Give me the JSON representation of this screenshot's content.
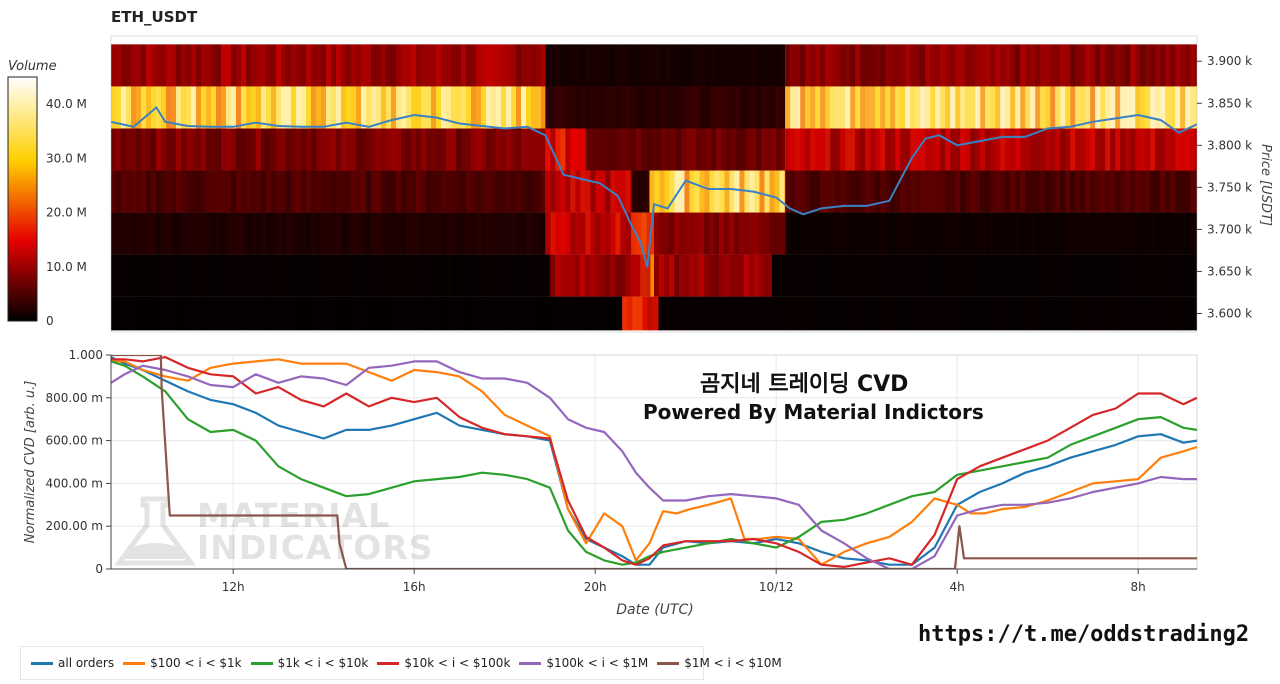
{
  "chart_data": [
    {
      "type": "heatmap",
      "title": "ETH_USDT",
      "colorbar": {
        "label": "Volume",
        "ticks": [
          "40.0 M",
          "30.0 M",
          "20.0 M",
          "10.0 M",
          "0"
        ],
        "tick_values": [
          40,
          30,
          20,
          10,
          0
        ],
        "range_millions": [
          0,
          45
        ],
        "colorscale": "hot"
      },
      "y_axis": {
        "label": "Price [USDT]",
        "range": [
          3.578,
          3.93
        ],
        "tick_values": [
          3.6,
          3.65,
          3.7,
          3.75,
          3.8,
          3.85,
          3.9
        ],
        "tick_labels": [
          "3.600 k",
          "3.650 k",
          "3.700 k",
          "3.750 k",
          "3.800 k",
          "3.850 k",
          "3.900 k"
        ]
      },
      "x_range_hours": [
        9.3,
        33.3
      ],
      "price_bins": [
        3.58,
        3.62,
        3.67,
        3.72,
        3.77,
        3.82,
        3.87,
        3.92
      ],
      "bands": [
        {
          "range": [
            3.87,
            3.92
          ],
          "segments": [
            {
              "from": 9.3,
              "to": 18.9,
              "level": 10
            },
            {
              "from": 18.9,
              "to": 24.2,
              "level": 1.5
            },
            {
              "from": 24.2,
              "to": 33.3,
              "level": 9
            }
          ]
        },
        {
          "range": [
            3.82,
            3.87
          ],
          "segments": [
            {
              "from": 9.3,
              "to": 18.9,
              "level": 34
            },
            {
              "from": 18.9,
              "to": 24.2,
              "level": 3
            },
            {
              "from": 24.2,
              "to": 33.3,
              "level": 36
            }
          ]
        },
        {
          "range": [
            3.77,
            3.82
          ],
          "segments": [
            {
              "from": 9.3,
              "to": 18.9,
              "level": 8
            },
            {
              "from": 18.9,
              "to": 19.8,
              "level": 15
            },
            {
              "from": 19.8,
              "to": 24.2,
              "level": 7
            },
            {
              "from": 24.2,
              "to": 33.3,
              "level": 12
            }
          ]
        },
        {
          "range": [
            3.72,
            3.77
          ],
          "segments": [
            {
              "from": 9.3,
              "to": 18.9,
              "level": 5
            },
            {
              "from": 18.9,
              "to": 20.8,
              "level": 12
            },
            {
              "from": 20.8,
              "to": 21.2,
              "level": 3
            },
            {
              "from": 21.2,
              "to": 24.2,
              "level": 34
            },
            {
              "from": 24.2,
              "to": 33.3,
              "level": 5
            }
          ]
        },
        {
          "range": [
            3.67,
            3.72
          ],
          "segments": [
            {
              "from": 9.3,
              "to": 18.9,
              "level": 2
            },
            {
              "from": 18.9,
              "to": 20.8,
              "level": 13
            },
            {
              "from": 20.8,
              "to": 21.3,
              "level": 22
            },
            {
              "from": 21.3,
              "to": 24.2,
              "level": 8
            },
            {
              "from": 24.2,
              "to": 33.3,
              "level": 1
            }
          ]
        },
        {
          "range": [
            3.62,
            3.67
          ],
          "segments": [
            {
              "from": 9.3,
              "to": 19.0,
              "level": 0.5
            },
            {
              "from": 19.0,
              "to": 21.0,
              "level": 10
            },
            {
              "from": 21.0,
              "to": 21.3,
              "level": 20
            },
            {
              "from": 21.3,
              "to": 23.9,
              "level": 10
            },
            {
              "from": 23.9,
              "to": 33.3,
              "level": 0.5
            }
          ]
        },
        {
          "range": [
            3.58,
            3.62
          ],
          "segments": [
            {
              "from": 9.3,
              "to": 20.6,
              "level": 0.4
            },
            {
              "from": 20.6,
              "to": 21.4,
              "level": 17
            },
            {
              "from": 21.4,
              "to": 33.3,
              "level": 0.5
            }
          ]
        }
      ],
      "price_series": {
        "name": "price",
        "color": "#3b82c4",
        "x": [
          9.3,
          9.8,
          10.3,
          10.5,
          11,
          11.5,
          12,
          12.5,
          13,
          13.5,
          14,
          14.5,
          15,
          15.5,
          16,
          16.5,
          17,
          17.5,
          18,
          18.5,
          18.9,
          19.3,
          19.7,
          20.1,
          20.5,
          20.8,
          21.0,
          21.15,
          21.3,
          21.6,
          22,
          22.5,
          23,
          23.5,
          24,
          24.3,
          24.6,
          25,
          25.5,
          26,
          26.5,
          27,
          27.3,
          27.6,
          28,
          28.5,
          29,
          29.5,
          30,
          30.5,
          31,
          31.5,
          32,
          32.5,
          32.9,
          33.3
        ],
        "y": [
          3.828,
          3.822,
          3.845,
          3.828,
          3.823,
          3.822,
          3.822,
          3.827,
          3.823,
          3.822,
          3.822,
          3.827,
          3.822,
          3.83,
          3.836,
          3.833,
          3.826,
          3.823,
          3.82,
          3.822,
          3.812,
          3.765,
          3.76,
          3.755,
          3.74,
          3.705,
          3.685,
          3.655,
          3.73,
          3.725,
          3.758,
          3.748,
          3.748,
          3.745,
          3.738,
          3.725,
          3.718,
          3.725,
          3.728,
          3.728,
          3.734,
          3.785,
          3.808,
          3.812,
          3.8,
          3.805,
          3.81,
          3.81,
          3.82,
          3.822,
          3.828,
          3.832,
          3.836,
          3.83,
          3.815,
          3.825
        ]
      }
    },
    {
      "type": "line",
      "x_range_hours": [
        9.3,
        33.3
      ],
      "x_ticks": [
        {
          "value": 12,
          "label": "12h"
        },
        {
          "value": 16,
          "label": "16h"
        },
        {
          "value": 20,
          "label": "20h"
        },
        {
          "value": 24,
          "label": "10/12"
        },
        {
          "value": 28,
          "label": "4h"
        },
        {
          "value": 32,
          "label": "8h"
        }
      ],
      "xlabel": "Date (UTC)",
      "ylabel": "Normalized CVD [arb. u.]",
      "ylim": [
        0,
        1.0
      ],
      "y_ticks": [
        {
          "value": 0,
          "label": "0"
        },
        {
          "value": 0.2,
          "label": "200.00 m"
        },
        {
          "value": 0.4,
          "label": "400.00 m"
        },
        {
          "value": 0.6,
          "label": "600.00 m"
        },
        {
          "value": 0.8,
          "label": "800.00 m"
        },
        {
          "value": 1.0,
          "label": "1.000"
        }
      ],
      "grid": true,
      "legend": "bottom",
      "series": [
        {
          "name": "all orders",
          "color": "#1f77b4",
          "x": [
            9.3,
            9.6,
            10,
            10.5,
            11,
            11.5,
            12,
            12.5,
            13,
            13.5,
            14,
            14.5,
            15,
            15.5,
            16,
            16.5,
            17,
            17.5,
            18,
            18.5,
            19,
            19.4,
            19.8,
            20.2,
            20.6,
            20.9,
            21.2,
            21.5,
            22,
            22.5,
            23,
            23.5,
            24,
            24.5,
            25,
            25.5,
            26,
            26.5,
            27,
            27.5,
            28,
            28.5,
            29,
            29.5,
            30,
            30.5,
            31,
            31.5,
            32,
            32.5,
            33,
            33.3
          ],
          "y": [
            0.99,
            0.96,
            0.93,
            0.88,
            0.83,
            0.79,
            0.77,
            0.73,
            0.67,
            0.64,
            0.61,
            0.65,
            0.65,
            0.67,
            0.7,
            0.73,
            0.67,
            0.65,
            0.63,
            0.62,
            0.6,
            0.28,
            0.14,
            0.1,
            0.06,
            0.02,
            0.02,
            0.1,
            0.13,
            0.12,
            0.13,
            0.12,
            0.14,
            0.12,
            0.08,
            0.05,
            0.04,
            0.02,
            0.02,
            0.1,
            0.3,
            0.36,
            0.4,
            0.45,
            0.48,
            0.52,
            0.55,
            0.58,
            0.62,
            0.63,
            0.59,
            0.6
          ]
        },
        {
          "name": "$100 < i < $1k",
          "color": "#ff7f0e",
          "x": [
            9.3,
            9.6,
            10,
            10.5,
            11,
            11.5,
            12,
            12.5,
            13,
            13.5,
            14,
            14.5,
            15,
            15.5,
            16,
            16.5,
            17,
            17.5,
            18,
            18.5,
            19,
            19.4,
            19.8,
            20.2,
            20.6,
            20.9,
            21.2,
            21.5,
            21.8,
            22.1,
            22.5,
            23,
            23.3,
            23.6,
            24,
            24.5,
            25,
            25.5,
            26,
            26.5,
            27,
            27.5,
            28,
            28.3,
            28.6,
            29,
            29.5,
            30,
            30.5,
            31,
            31.5,
            32,
            32.5,
            33,
            33.3
          ],
          "y": [
            0.97,
            0.97,
            0.93,
            0.9,
            0.88,
            0.94,
            0.96,
            0.97,
            0.98,
            0.96,
            0.96,
            0.96,
            0.92,
            0.88,
            0.93,
            0.92,
            0.9,
            0.83,
            0.72,
            0.67,
            0.62,
            0.28,
            0.12,
            0.26,
            0.2,
            0.04,
            0.12,
            0.27,
            0.26,
            0.28,
            0.3,
            0.33,
            0.14,
            0.14,
            0.15,
            0.14,
            0.02,
            0.08,
            0.12,
            0.15,
            0.22,
            0.33,
            0.3,
            0.26,
            0.26,
            0.28,
            0.29,
            0.32,
            0.36,
            0.4,
            0.41,
            0.42,
            0.52,
            0.55,
            0.57
          ]
        },
        {
          "name": "$1k < i < $10k",
          "color": "#2ca02c",
          "x": [
            9.3,
            9.6,
            10,
            10.5,
            11,
            11.5,
            12,
            12.5,
            13,
            13.5,
            14,
            14.5,
            15,
            15.5,
            16,
            16.5,
            17,
            17.5,
            18,
            18.5,
            19,
            19.4,
            19.8,
            20.2,
            20.6,
            20.9,
            21.2,
            21.5,
            22,
            22.5,
            23,
            23.5,
            24,
            24.5,
            25,
            25.5,
            26,
            26.5,
            27,
            27.5,
            28,
            28.5,
            29,
            29.5,
            30,
            30.5,
            31,
            31.5,
            32,
            32.5,
            33,
            33.3
          ],
          "y": [
            0.97,
            0.95,
            0.9,
            0.83,
            0.7,
            0.64,
            0.65,
            0.6,
            0.48,
            0.42,
            0.38,
            0.34,
            0.35,
            0.38,
            0.41,
            0.42,
            0.43,
            0.45,
            0.44,
            0.42,
            0.38,
            0.18,
            0.08,
            0.04,
            0.02,
            0.03,
            0.06,
            0.08,
            0.1,
            0.12,
            0.14,
            0.12,
            0.1,
            0.15,
            0.22,
            0.23,
            0.26,
            0.3,
            0.34,
            0.36,
            0.44,
            0.46,
            0.48,
            0.5,
            0.52,
            0.58,
            0.62,
            0.66,
            0.7,
            0.71,
            0.66,
            0.65
          ]
        },
        {
          "name": "$10k < i < $100k",
          "color": "#d62728",
          "x": [
            9.3,
            9.6,
            10,
            10.5,
            11,
            11.5,
            12,
            12.5,
            13,
            13.5,
            14,
            14.5,
            15,
            15.5,
            16,
            16.5,
            17,
            17.5,
            18,
            18.5,
            19,
            19.4,
            19.8,
            20.2,
            20.6,
            20.9,
            21.2,
            21.5,
            22,
            22.5,
            23,
            23.5,
            24,
            24.5,
            25,
            25.5,
            26,
            26.5,
            27,
            27.5,
            28,
            28.5,
            29,
            29.5,
            30,
            30.5,
            31,
            31.5,
            32,
            32.5,
            33,
            33.3
          ],
          "y": [
            0.98,
            0.98,
            0.97,
            0.99,
            0.94,
            0.91,
            0.9,
            0.82,
            0.85,
            0.79,
            0.76,
            0.82,
            0.76,
            0.8,
            0.78,
            0.8,
            0.71,
            0.66,
            0.63,
            0.62,
            0.61,
            0.32,
            0.15,
            0.1,
            0.04,
            0.02,
            0.05,
            0.11,
            0.13,
            0.13,
            0.13,
            0.14,
            0.12,
            0.08,
            0.02,
            0.01,
            0.03,
            0.05,
            0.02,
            0.16,
            0.42,
            0.48,
            0.52,
            0.56,
            0.6,
            0.66,
            0.72,
            0.75,
            0.82,
            0.82,
            0.77,
            0.8
          ]
        },
        {
          "name": "$100k < i < $1M",
          "color": "#9467bd",
          "x": [
            9.3,
            9.6,
            10,
            10.5,
            11,
            11.5,
            12,
            12.5,
            13,
            13.5,
            14,
            14.5,
            15,
            15.5,
            16,
            16.5,
            17,
            17.5,
            18,
            18.5,
            19,
            19.4,
            19.8,
            20.2,
            20.6,
            20.9,
            21.2,
            21.5,
            22,
            22.5,
            23,
            23.5,
            24,
            24.5,
            25,
            25.5,
            26,
            26.5,
            27,
            27.5,
            28,
            28.5,
            29,
            29.5,
            30,
            30.5,
            31,
            31.5,
            32,
            32.5,
            33,
            33.3
          ],
          "y": [
            0.87,
            0.91,
            0.95,
            0.93,
            0.9,
            0.86,
            0.85,
            0.91,
            0.87,
            0.9,
            0.89,
            0.86,
            0.94,
            0.95,
            0.97,
            0.97,
            0.92,
            0.89,
            0.89,
            0.87,
            0.8,
            0.7,
            0.66,
            0.64,
            0.55,
            0.45,
            0.38,
            0.32,
            0.32,
            0.34,
            0.35,
            0.34,
            0.33,
            0.3,
            0.18,
            0.12,
            0.05,
            0.0,
            0.0,
            0.06,
            0.25,
            0.28,
            0.3,
            0.3,
            0.31,
            0.33,
            0.36,
            0.38,
            0.4,
            0.43,
            0.42,
            0.42
          ]
        },
        {
          "name": "$1M < i < $10M",
          "color": "#8c564b",
          "x": [
            9.3,
            10.4,
            10.42,
            10.6,
            14.3,
            14.35,
            14.5,
            27.95,
            28.05,
            28.15,
            33.3
          ],
          "y": [
            1.0,
            1.0,
            0.84,
            0.25,
            0.25,
            0.12,
            0.0,
            0.0,
            0.2,
            0.05,
            0.05
          ]
        }
      ]
    }
  ],
  "overlay": {
    "line1": "곰지네 트레이딩 CVD",
    "line2": "Powered By Material Indictors"
  },
  "watermark": {
    "line1": "MATERIAL",
    "line2": "INDICATORS"
  },
  "link": "https://t.me/oddstrading2"
}
